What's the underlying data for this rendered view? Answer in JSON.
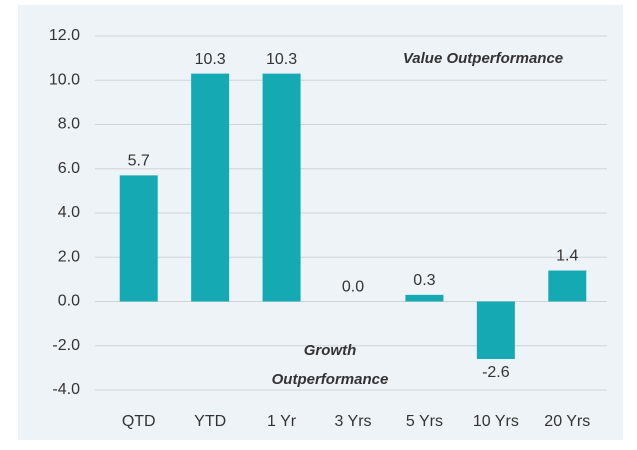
{
  "chart_data": {
    "type": "bar",
    "categories": [
      "QTD",
      "YTD",
      "1 Yr",
      "3 Yrs",
      "5 Yrs",
      "10 Yrs",
      "20 Yrs"
    ],
    "values": [
      5.7,
      10.3,
      10.3,
      0,
      0.3,
      -2.6,
      1.4
    ],
    "value_labels": [
      "5.7",
      "10.3",
      "10.3",
      "0.0",
      "0.3",
      "-2.6",
      "1.4"
    ],
    "color": "#15a9b4",
    "ylim": [
      -4,
      12
    ],
    "yticks": [
      {
        "value": -4,
        "label": "-4.0"
      },
      {
        "value": -2,
        "label": "-2.0"
      },
      {
        "value": 0,
        "label": "0.0"
      },
      {
        "value": 2,
        "label": "2.0"
      },
      {
        "value": 4,
        "label": "4.0"
      },
      {
        "value": 6,
        "label": "6.0"
      },
      {
        "value": 8,
        "label": "8.0"
      },
      {
        "value": 10,
        "label": "10.0"
      },
      {
        "value": 12,
        "label": "12.0"
      }
    ],
    "grid": true,
    "annotations": [
      {
        "lines": [
          "Value Outperformance"
        ]
      },
      {
        "lines": [
          "Growth",
          "Outperformance"
        ]
      }
    ]
  }
}
